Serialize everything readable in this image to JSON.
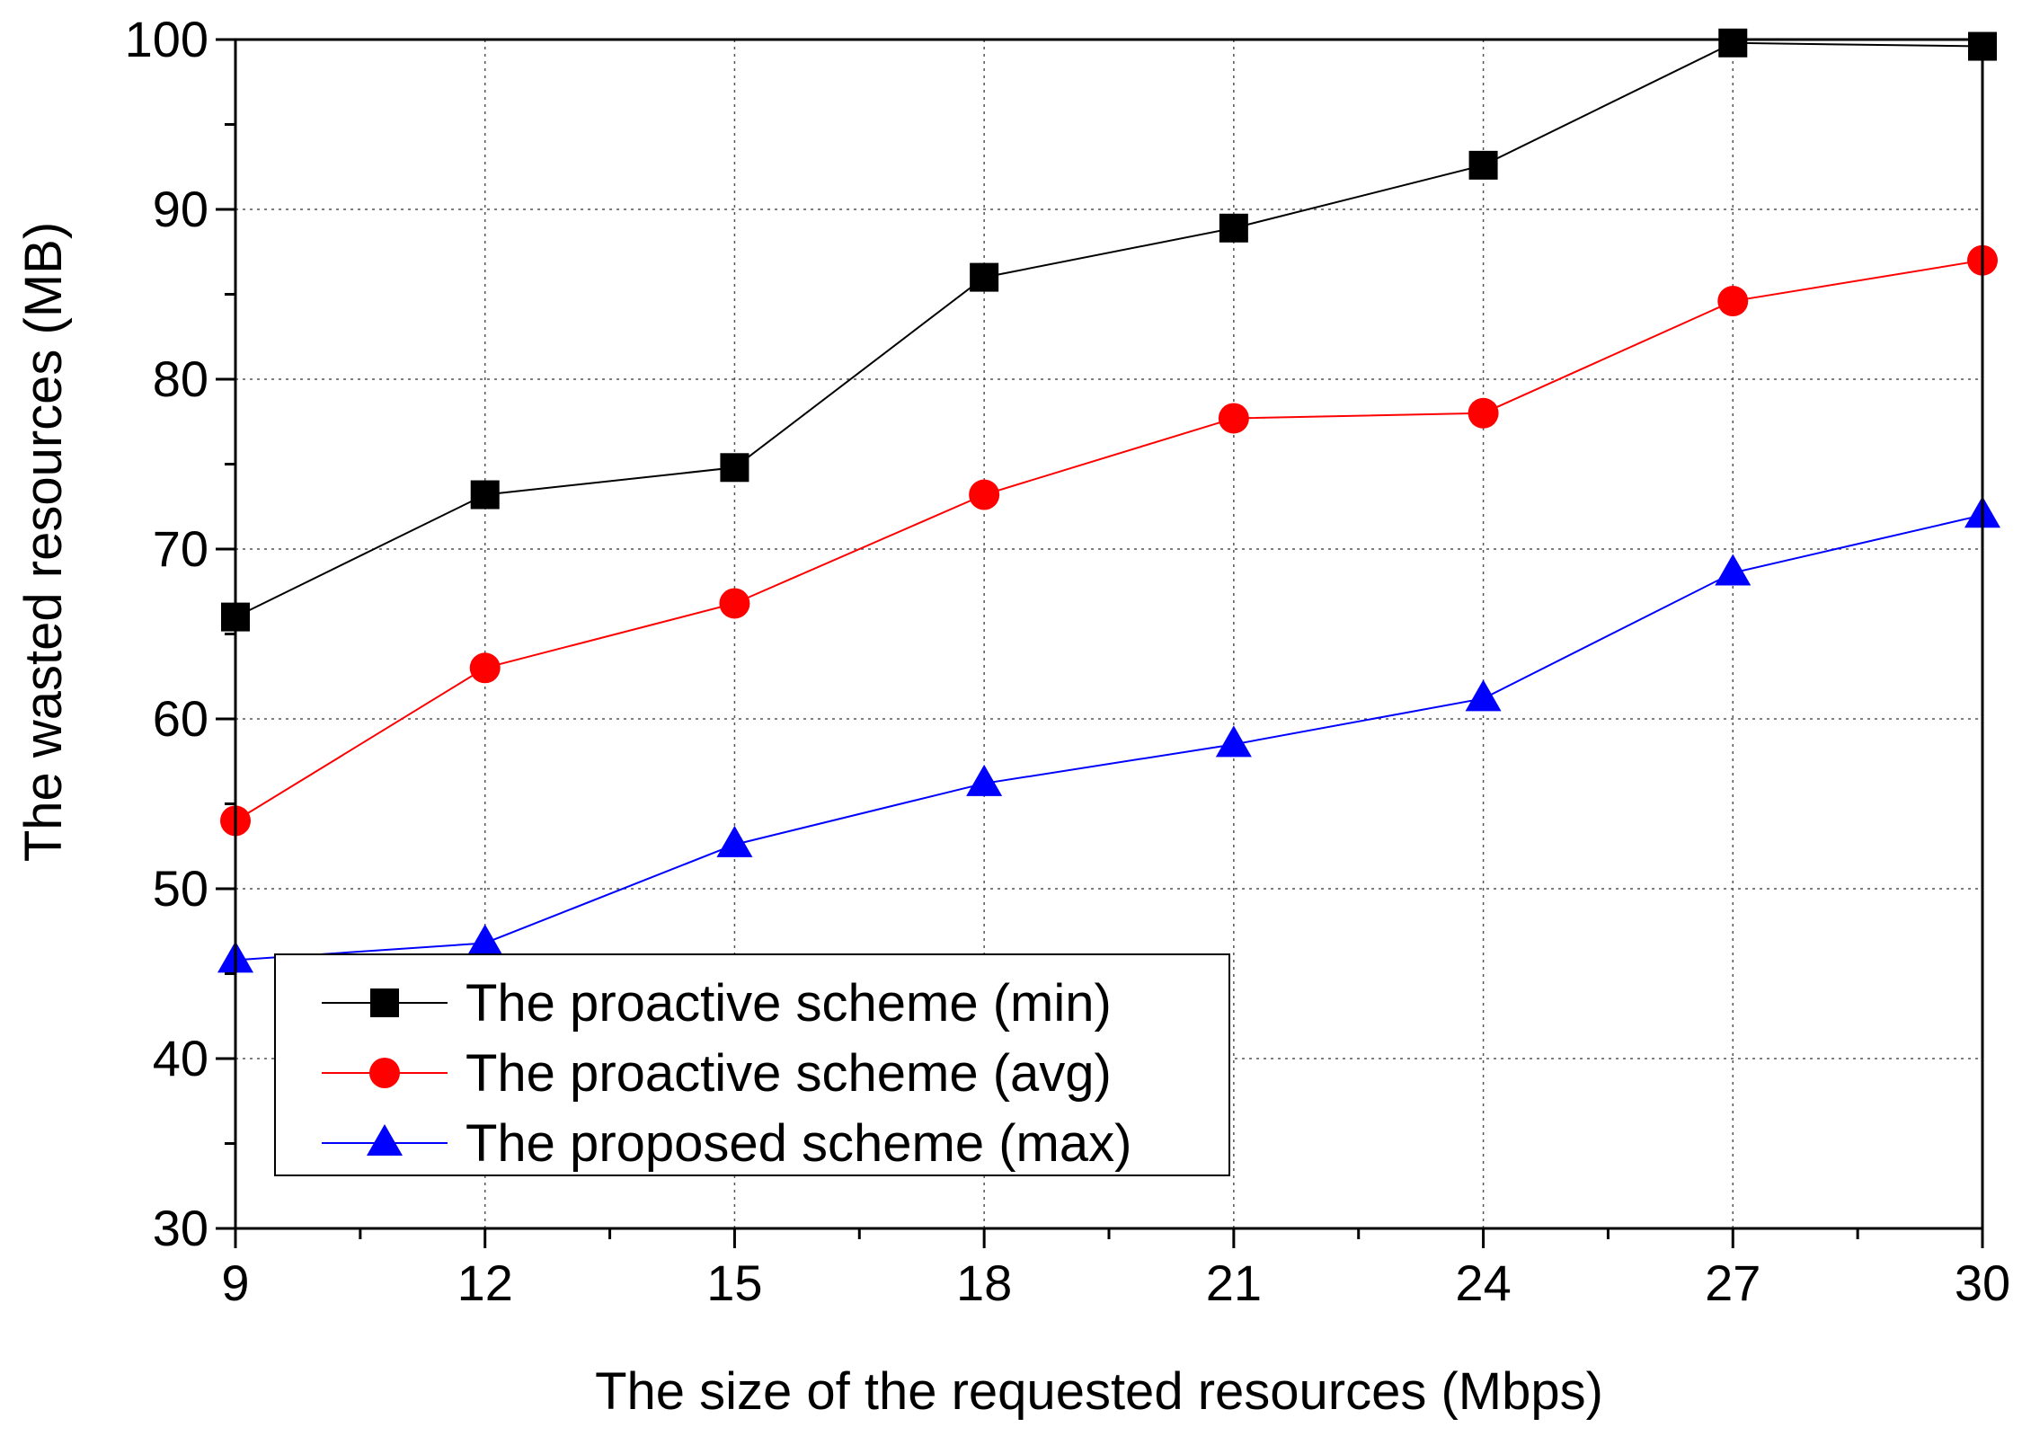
{
  "chart_data": {
    "type": "line",
    "title": "",
    "xlabel": "The size of the requested resources (Mbps)",
    "ylabel": "The wasted resources (MB)",
    "x": [
      9,
      12,
      15,
      18,
      21,
      24,
      27,
      30
    ],
    "xlim": [
      9,
      30
    ],
    "ylim": [
      30,
      100
    ],
    "xticks": [
      9,
      12,
      15,
      18,
      21,
      24,
      27,
      30
    ],
    "yticks": [
      30,
      40,
      50,
      60,
      70,
      80,
      90,
      100
    ],
    "xtick_labels": [
      "9",
      "12",
      "15",
      "18",
      "21",
      "24",
      "27",
      "30"
    ],
    "ytick_labels": [
      "30",
      "40",
      "50",
      "60",
      "70",
      "80",
      "90",
      "100"
    ],
    "grid": true,
    "legend_position": "bottom-left",
    "series": [
      {
        "name": "The proactive scheme (min)",
        "marker": "square",
        "color": "#000000",
        "values": [
          66.0,
          73.2,
          74.8,
          86.0,
          88.9,
          92.6,
          99.8,
          99.6
        ]
      },
      {
        "name": "The proactive scheme (avg)",
        "marker": "circle",
        "color": "#ff0000",
        "values": [
          54.0,
          63.0,
          66.8,
          73.2,
          77.7,
          78.0,
          84.6,
          87.0
        ]
      },
      {
        "name": "The proposed scheme (max)",
        "marker": "triangle",
        "color": "#0000ff",
        "values": [
          45.8,
          46.8,
          52.6,
          56.2,
          58.5,
          61.2,
          68.6,
          72.0
        ]
      }
    ]
  }
}
